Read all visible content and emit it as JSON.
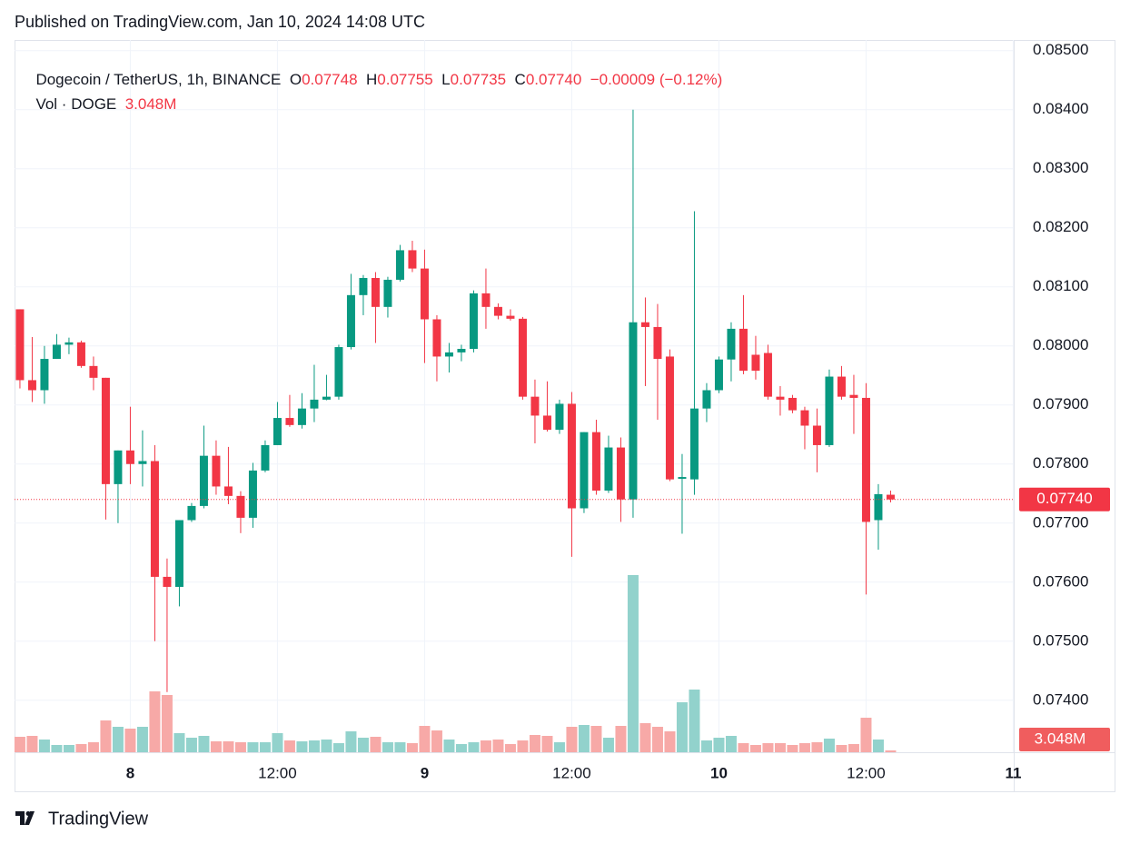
{
  "header": {
    "published": "Published on TradingView.com, Jan 10, 2024 14:08 UTC",
    "brand": "TradingView"
  },
  "chart_data": {
    "type": "candlestick",
    "title": "Dogecoin / TetherUS, 1h, BINANCE",
    "legend": [
      {
        "key": "O",
        "value": "0.07748"
      },
      {
        "key": "H",
        "value": "0.07755"
      },
      {
        "key": "L",
        "value": "0.07735"
      },
      {
        "key": "C",
        "value": "0.07740"
      }
    ],
    "change": "−0.00009 (−0.12%)",
    "volume_title": "Vol · DOGE",
    "volume_value": "3.048M",
    "up_color": "#089981",
    "down_color": "#f23645",
    "volume_up_color": "#92d2cc",
    "volume_down_color": "#f7a9a7",
    "grid": true,
    "x": [
      0,
      1,
      2,
      3,
      4,
      5,
      6,
      7,
      8,
      9,
      10,
      11,
      12,
      13,
      14,
      15,
      16,
      17,
      18,
      19,
      20,
      21,
      22,
      23,
      24,
      25,
      26,
      27,
      28,
      29,
      30,
      31,
      32,
      33,
      34,
      35,
      36,
      37,
      38,
      39,
      40,
      41,
      42,
      43,
      44,
      45,
      46,
      47,
      48,
      49,
      50,
      51,
      52,
      53,
      54,
      55,
      56,
      57,
      58,
      59,
      60,
      61,
      62,
      63,
      64,
      65,
      66,
      67,
      68,
      69,
      70,
      71
    ],
    "xlim": [
      -0.44,
      81.04
    ],
    "xticks": [
      {
        "value": 9,
        "label": "8"
      },
      {
        "value": 21,
        "label": "12:00"
      },
      {
        "value": 33,
        "label": "9"
      },
      {
        "value": 45,
        "label": "12:00"
      },
      {
        "value": 57,
        "label": "10"
      },
      {
        "value": 69,
        "label": "12:00"
      },
      {
        "value": 81,
        "label": "11"
      }
    ],
    "open": [
      0.08062,
      0.07942,
      0.07925,
      0.07978,
      0.08002,
      0.08006,
      0.07966,
      0.07946,
      0.07766,
      0.07823,
      0.078,
      0.07805,
      0.07609,
      0.07592,
      0.07705,
      0.07729,
      0.07814,
      0.07762,
      0.07746,
      0.07709,
      0.07789,
      0.07832,
      0.07878,
      0.07866,
      0.07894,
      0.07909,
      0.07914,
      0.07998,
      0.08086,
      0.08115,
      0.08066,
      0.08112,
      0.08162,
      0.08131,
      0.08045,
      0.07982,
      0.07989,
      0.07995,
      0.08089,
      0.08066,
      0.08051,
      0.08046,
      0.07914,
      0.07882,
      0.07858,
      0.07902,
      0.07725,
      0.07854,
      0.07755,
      0.07828,
      0.0774,
      0.0804,
      0.08032,
      0.07982,
      0.07775,
      0.07774,
      0.07894,
      0.07925,
      0.07977,
      0.08029,
      0.07985,
      0.07988,
      0.07914,
      0.07912,
      0.07891,
      0.07865,
      0.07832,
      0.07948,
      0.07917,
      0.07912,
      0.07705,
      0.07748
    ],
    "high": [
      0.08062,
      0.08015,
      0.08,
      0.0802,
      0.08014,
      0.08009,
      0.07982,
      0.07946,
      0.07823,
      0.07897,
      0.07857,
      0.07832,
      0.0764,
      0.07705,
      0.07734,
      0.07865,
      0.0784,
      0.07829,
      0.07754,
      0.07802,
      0.0784,
      0.07905,
      0.07917,
      0.0792,
      0.07968,
      0.07951,
      0.08002,
      0.08122,
      0.0812,
      0.08125,
      0.08117,
      0.08171,
      0.08178,
      0.08163,
      0.08052,
      0.08005,
      0.08002,
      0.08094,
      0.08131,
      0.08072,
      0.08062,
      0.08049,
      0.07943,
      0.0794,
      0.07909,
      0.07922,
      0.07854,
      0.07875,
      0.07848,
      0.07845,
      0.084,
      0.08082,
      0.08071,
      0.07994,
      0.07817,
      0.08228,
      0.07937,
      0.07982,
      0.0804,
      0.08086,
      0.08017,
      0.08002,
      0.07932,
      0.07917,
      0.07897,
      0.07894,
      0.0796,
      0.07966,
      0.07951,
      0.07937,
      0.07766,
      0.07755
    ],
    "low": [
      0.07928,
      0.07905,
      0.07902,
      0.07978,
      0.07986,
      0.07963,
      0.07925,
      0.07706,
      0.077,
      0.07766,
      0.07762,
      0.075,
      0.07414,
      0.07559,
      0.07702,
      0.07725,
      0.07748,
      0.07732,
      0.07683,
      0.07692,
      0.07786,
      0.07832,
      0.07863,
      0.0786,
      0.07871,
      0.07908,
      0.07909,
      0.07994,
      0.08052,
      0.08005,
      0.08048,
      0.08109,
      0.08125,
      0.07971,
      0.0794,
      0.07955,
      0.07974,
      0.07989,
      0.08029,
      0.08045,
      0.08043,
      0.07909,
      0.07835,
      0.07855,
      0.07851,
      0.07643,
      0.07717,
      0.07748,
      0.07751,
      0.07702,
      0.07709,
      0.07932,
      0.07875,
      0.07771,
      0.07682,
      0.07748,
      0.07871,
      0.0792,
      0.0794,
      0.07952,
      0.07943,
      0.07909,
      0.07882,
      0.07886,
      0.07825,
      0.07786,
      0.07829,
      0.07909,
      0.07851,
      0.07579,
      0.07655,
      0.07735
    ],
    "close": [
      0.07942,
      0.07925,
      0.07978,
      0.08002,
      0.08006,
      0.07966,
      0.07946,
      0.07766,
      0.07823,
      0.078,
      0.07805,
      0.07609,
      0.07592,
      0.07705,
      0.07729,
      0.07814,
      0.07762,
      0.07746,
      0.07709,
      0.07789,
      0.07832,
      0.07878,
      0.07866,
      0.07894,
      0.07909,
      0.07914,
      0.07998,
      0.08086,
      0.08115,
      0.08066,
      0.08112,
      0.08162,
      0.08131,
      0.08045,
      0.07982,
      0.07989,
      0.07995,
      0.08089,
      0.08066,
      0.08051,
      0.08046,
      0.07914,
      0.07882,
      0.07858,
      0.07902,
      0.07725,
      0.07854,
      0.07755,
      0.07828,
      0.0774,
      0.0804,
      0.08032,
      0.07978,
      0.07774,
      0.07778,
      0.07894,
      0.07925,
      0.07977,
      0.08029,
      0.07958,
      0.07958,
      0.07914,
      0.07909,
      0.07891,
      0.07865,
      0.07832,
      0.07948,
      0.07914,
      0.07912,
      0.07702,
      0.07749,
      0.0774
    ],
    "volume": [
      25.5,
      27,
      21,
      12,
      12,
      13.5,
      16.5,
      52.5,
      42,
      39,
      42,
      100.5,
      94.5,
      31.5,
      24,
      27,
      18,
      18,
      16.5,
      16.5,
      16.5,
      31.5,
      19.5,
      18,
      19.5,
      21,
      15,
      34.5,
      24,
      25.5,
      16.5,
      16.5,
      15,
      43.5,
      36,
      21,
      13.5,
      16.5,
      19.5,
      21,
      13.5,
      19.5,
      28.5,
      27,
      16.5,
      42,
      45,
      43.5,
      24,
      43.5,
      292.5,
      48,
      42,
      34.5,
      82.5,
      103.5,
      19.5,
      24,
      27,
      15,
      12,
      15,
      15,
      12,
      15,
      16.5,
      22.5,
      12,
      13.5,
      57,
      21,
      3.048
    ],
    "ylim": [
      0.07312,
      0.08518
    ],
    "yticks": [
      {
        "value": 0.074,
        "label": "0.07400"
      },
      {
        "value": 0.075,
        "label": "0.07500"
      },
      {
        "value": 0.076,
        "label": "0.07600"
      },
      {
        "value": 0.077,
        "label": "0.07700"
      },
      {
        "value": 0.078,
        "label": "0.07800"
      },
      {
        "value": 0.079,
        "label": "0.07900"
      },
      {
        "value": 0.08,
        "label": "0.08000"
      },
      {
        "value": 0.081,
        "label": "0.08100"
      },
      {
        "value": 0.082,
        "label": "0.08200"
      },
      {
        "value": 0.083,
        "label": "0.08300"
      },
      {
        "value": 0.084,
        "label": "0.08400"
      },
      {
        "value": 0.085,
        "label": "0.08500"
      }
    ]
  }
}
